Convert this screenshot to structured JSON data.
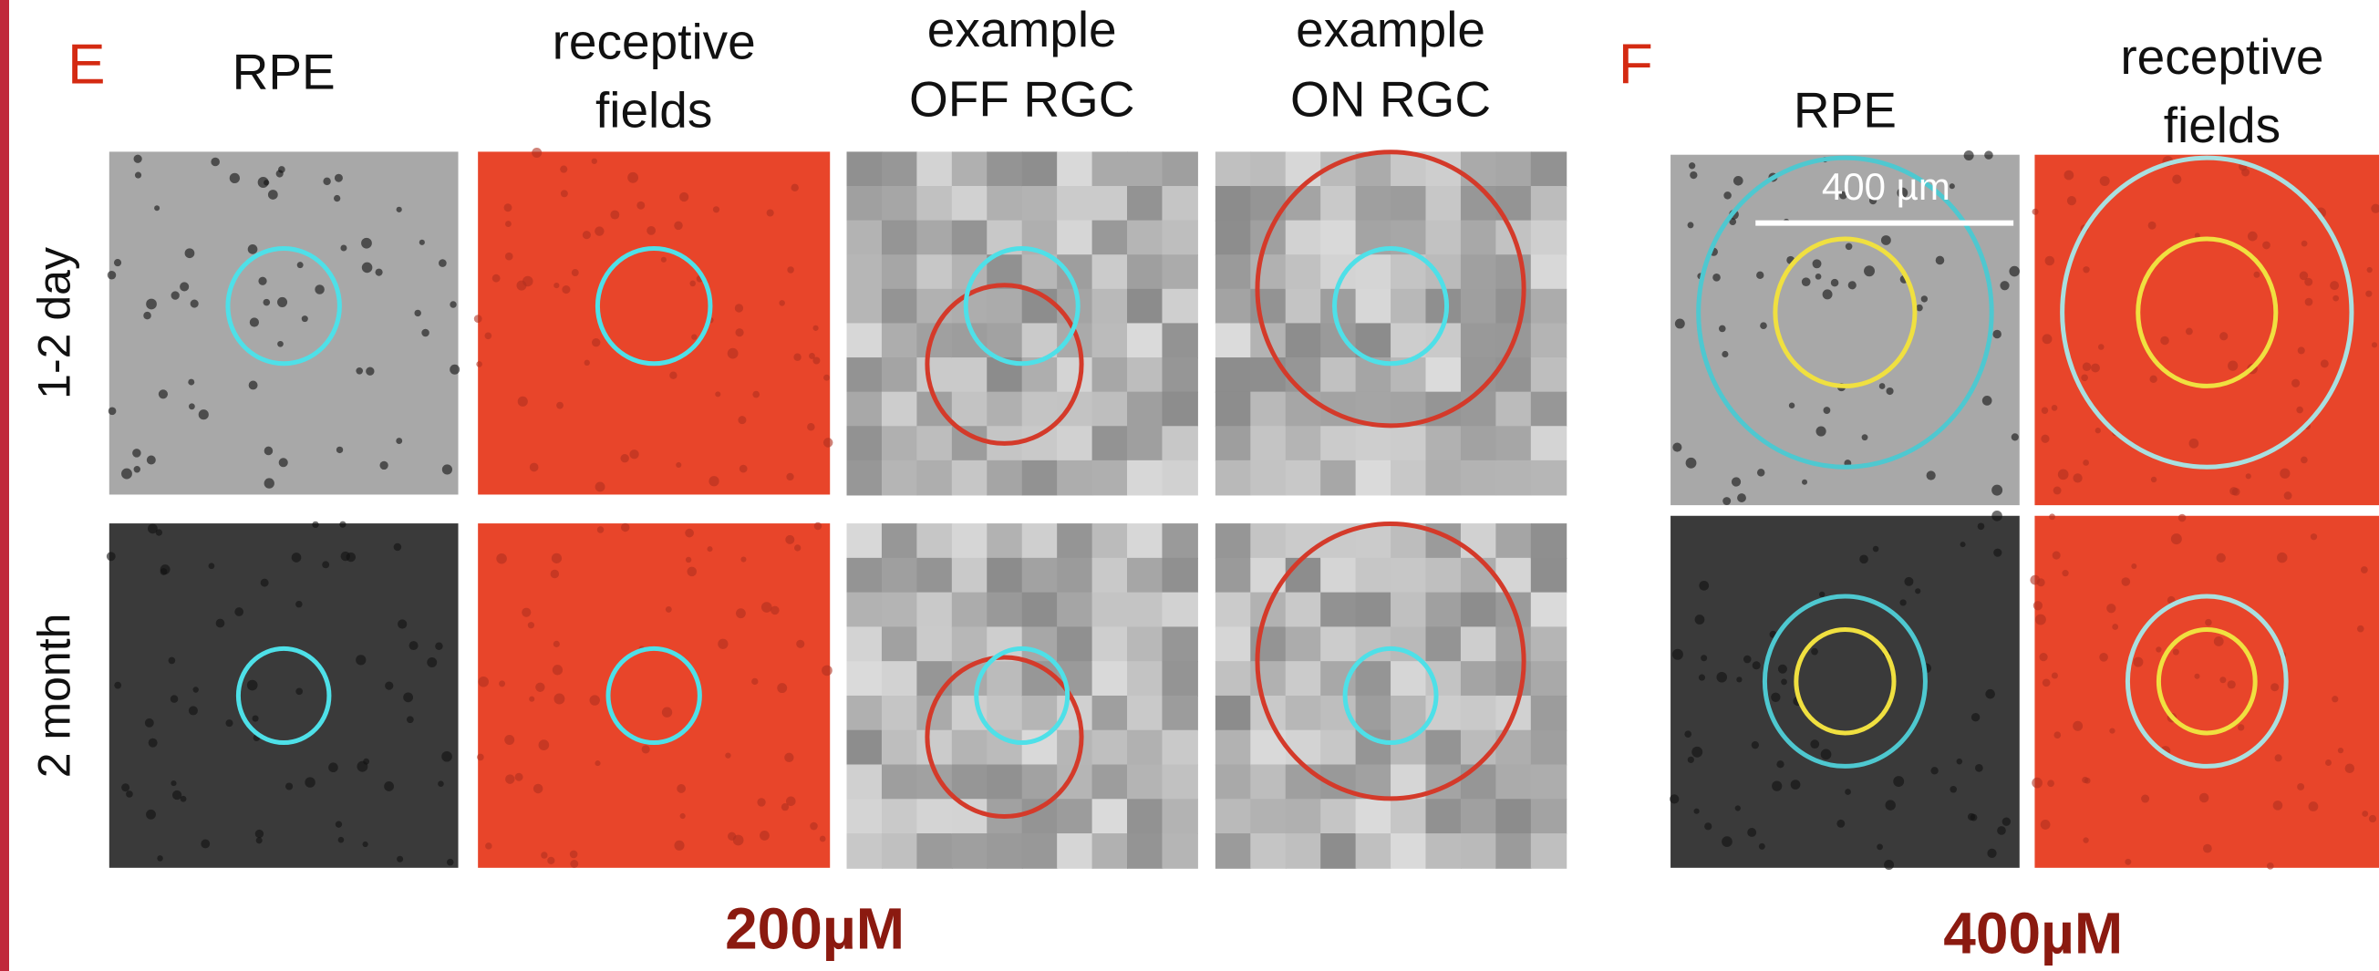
{
  "panels": [
    {
      "label": "E",
      "columns": [
        [
          "RPE"
        ],
        [
          "receptive",
          "fields"
        ],
        [
          "example",
          "OFF RGC"
        ],
        [
          "example",
          "ON RGC"
        ]
      ],
      "rows": [
        "1-2 day",
        "2 month"
      ],
      "concentration": "200µM"
    },
    {
      "label": "F",
      "columns": [
        [
          "RPE"
        ],
        [
          "receptive",
          "fields"
        ]
      ],
      "concentration": "400µM",
      "scale_bar": "400 µm"
    }
  ]
}
